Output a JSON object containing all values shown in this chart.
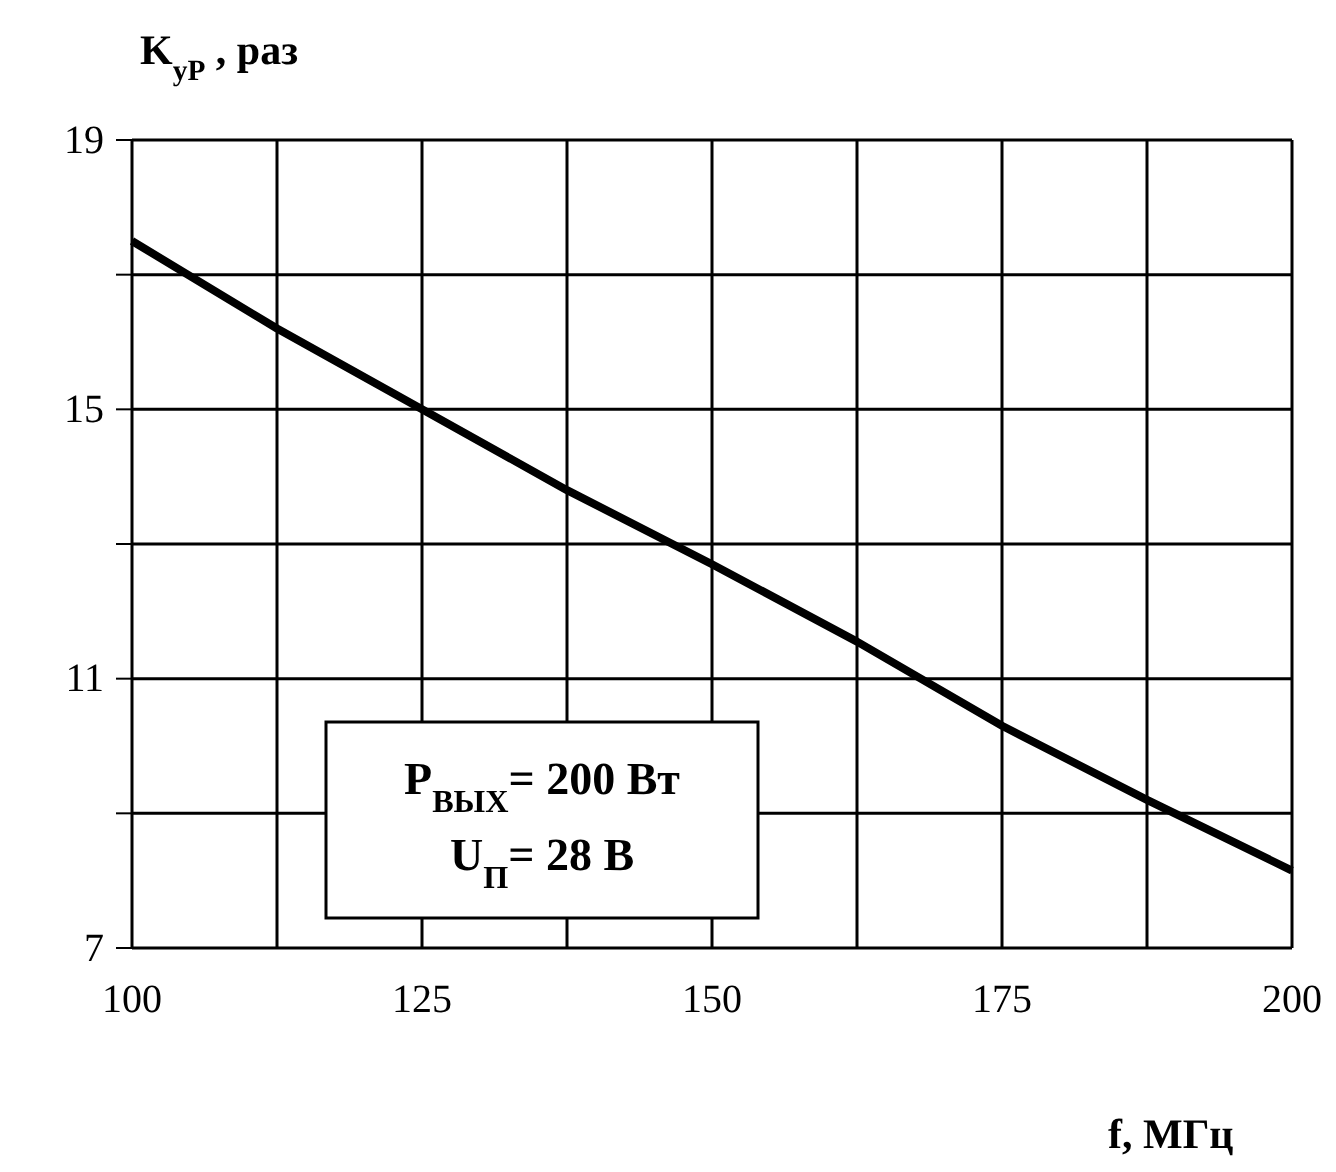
{
  "chart_data": {
    "type": "line",
    "xlabel": "f, МГц",
    "ylabel": "K$_{уР}$ , раз",
    "x": [
      100,
      112.5,
      125,
      137.5,
      150,
      162.5,
      175,
      187.5,
      200
    ],
    "series": [
      {
        "color": "#000000",
        "values": [
          17.5,
          16.2,
          15.0,
          13.8,
          12.7,
          11.55,
          10.3,
          9.2,
          8.15
        ]
      }
    ],
    "xlim": [
      100,
      200
    ],
    "xticks": [
      100,
      {
        "value": 112.5,
        "label": null
      },
      125,
      {
        "value": 137.5,
        "label": null
      },
      150,
      {
        "value": 162.5,
        "label": null
      },
      175,
      {
        "value": 187.5,
        "label": null
      },
      200
    ],
    "ylim": [
      7,
      19
    ],
    "yticks": [
      7,
      {
        "value": 9,
        "label": null
      },
      11,
      {
        "value": 13,
        "label": null
      },
      15,
      {
        "value": 17,
        "label": null
      },
      19
    ],
    "grid": true,
    "marker": "none",
    "line_style": "solid",
    "annotations": [
      "P$_{ВЫХ}$= 200 Вт",
      "U$_{П}$= 28 В"
    ]
  }
}
